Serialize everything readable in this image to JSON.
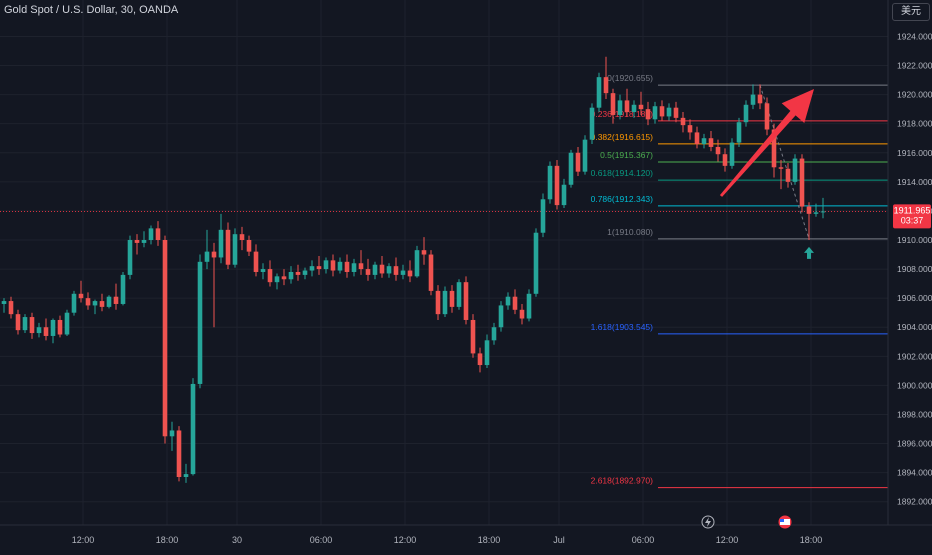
{
  "header": {
    "symbol_title": "Gold Spot / U.S. Dollar, 30, OANDA",
    "currency_button": "美元"
  },
  "colors": {
    "background": "#131722",
    "bull": "#26a69a",
    "bear": "#ef5350",
    "arrow": "#f23645"
  },
  "price_badge": {
    "price": "1911.965",
    "countdown": "03:37"
  },
  "chart_data": {
    "type": "candlestick",
    "title": "Gold Spot / U.S. Dollar, 30, OANDA",
    "x_tick_labels": [
      "12:00",
      "18:00",
      "30",
      "06:00",
      "12:00",
      "18:00",
      "Jul",
      "06:00",
      "12:00",
      "18:00"
    ],
    "y_tick_labels": [
      "1924.000",
      "1922.000",
      "1920.000",
      "1918.000",
      "1916.000",
      "1914.000",
      "1912.000",
      "1910.000",
      "1908.000",
      "1906.000",
      "1904.000",
      "1902.000",
      "1900.000",
      "1898.000",
      "1896.000",
      "1894.000",
      "1892.000"
    ],
    "ylim": [
      1891.0,
      1925.0
    ],
    "grid": true,
    "current_price": 1911.965,
    "candles": [
      {
        "o": 1905.6,
        "h": 1906.0,
        "c": 1905.8,
        "l": 1905.0
      },
      {
        "o": 1905.8,
        "h": 1906.1,
        "c": 1904.9,
        "l": 1904.6
      },
      {
        "o": 1904.9,
        "h": 1905.2,
        "c": 1903.8,
        "l": 1903.5
      },
      {
        "o": 1903.8,
        "h": 1904.9,
        "c": 1904.7,
        "l": 1903.6
      },
      {
        "o": 1904.7,
        "h": 1905.0,
        "c": 1903.6,
        "l": 1903.2
      },
      {
        "o": 1903.6,
        "h": 1904.3,
        "c": 1904.0,
        "l": 1903.3
      },
      {
        "o": 1904.0,
        "h": 1904.6,
        "c": 1903.4,
        "l": 1903.1
      },
      {
        "o": 1903.4,
        "h": 1904.6,
        "c": 1904.5,
        "l": 1902.9
      },
      {
        "o": 1904.5,
        "h": 1904.8,
        "c": 1903.5,
        "l": 1903.3
      },
      {
        "o": 1903.5,
        "h": 1905.2,
        "c": 1905.0,
        "l": 1903.4
      },
      {
        "o": 1905.0,
        "h": 1906.5,
        "c": 1906.3,
        "l": 1904.8
      },
      {
        "o": 1906.3,
        "h": 1907.2,
        "c": 1906.0,
        "l": 1905.7
      },
      {
        "o": 1906.0,
        "h": 1906.4,
        "c": 1905.5,
        "l": 1905.2
      },
      {
        "o": 1905.5,
        "h": 1905.9,
        "c": 1905.8,
        "l": 1904.9
      },
      {
        "o": 1905.8,
        "h": 1906.3,
        "c": 1905.4,
        "l": 1905.1
      },
      {
        "o": 1905.4,
        "h": 1906.2,
        "c": 1906.1,
        "l": 1905.3
      },
      {
        "o": 1906.1,
        "h": 1907.0,
        "c": 1905.6,
        "l": 1905.2
      },
      {
        "o": 1905.6,
        "h": 1907.8,
        "c": 1907.6,
        "l": 1905.5
      },
      {
        "o": 1907.6,
        "h": 1910.3,
        "c": 1910.0,
        "l": 1907.3
      },
      {
        "o": 1910.0,
        "h": 1910.4,
        "c": 1909.8,
        "l": 1909.0
      },
      {
        "o": 1909.8,
        "h": 1910.6,
        "c": 1910.0,
        "l": 1909.5
      },
      {
        "o": 1910.0,
        "h": 1911.0,
        "c": 1910.8,
        "l": 1909.7
      },
      {
        "o": 1910.8,
        "h": 1911.3,
        "c": 1910.0,
        "l": 1909.6
      },
      {
        "o": 1910.0,
        "h": 1910.3,
        "c": 1896.5,
        "l": 1896.0
      },
      {
        "o": 1896.5,
        "h": 1897.5,
        "c": 1896.9,
        "l": 1895.5
      },
      {
        "o": 1896.9,
        "h": 1897.2,
        "c": 1893.7,
        "l": 1893.4
      },
      {
        "o": 1893.7,
        "h": 1894.6,
        "c": 1893.9,
        "l": 1893.3
      },
      {
        "o": 1893.9,
        "h": 1900.5,
        "c": 1900.1,
        "l": 1893.8
      },
      {
        "o": 1900.1,
        "h": 1909.0,
        "c": 1908.5,
        "l": 1899.8
      },
      {
        "o": 1908.5,
        "h": 1910.7,
        "c": 1909.2,
        "l": 1908.0
      },
      {
        "o": 1909.2,
        "h": 1909.8,
        "c": 1908.8,
        "l": 1904.0
      },
      {
        "o": 1908.8,
        "h": 1911.8,
        "c": 1910.7,
        "l": 1908.4
      },
      {
        "o": 1910.7,
        "h": 1911.2,
        "c": 1908.3,
        "l": 1908.0
      },
      {
        "o": 1908.3,
        "h": 1910.8,
        "c": 1910.4,
        "l": 1908.1
      },
      {
        "o": 1910.4,
        "h": 1910.9,
        "c": 1910.0,
        "l": 1909.3
      },
      {
        "o": 1910.0,
        "h": 1910.3,
        "c": 1909.2,
        "l": 1908.9
      },
      {
        "o": 1909.2,
        "h": 1909.7,
        "c": 1907.8,
        "l": 1907.5
      },
      {
        "o": 1907.8,
        "h": 1908.4,
        "c": 1908.0,
        "l": 1907.3
      },
      {
        "o": 1908.0,
        "h": 1908.6,
        "c": 1907.1,
        "l": 1906.8
      },
      {
        "o": 1907.1,
        "h": 1907.7,
        "c": 1907.5,
        "l": 1906.6
      },
      {
        "o": 1907.5,
        "h": 1908.0,
        "c": 1907.3,
        "l": 1906.9
      },
      {
        "o": 1907.3,
        "h": 1908.2,
        "c": 1907.8,
        "l": 1907.0
      },
      {
        "o": 1907.8,
        "h": 1908.3,
        "c": 1907.6,
        "l": 1907.2
      },
      {
        "o": 1907.6,
        "h": 1908.1,
        "c": 1907.9,
        "l": 1907.3
      },
      {
        "o": 1907.9,
        "h": 1908.6,
        "c": 1908.2,
        "l": 1907.5
      },
      {
        "o": 1908.2,
        "h": 1908.9,
        "c": 1908.0,
        "l": 1907.6
      },
      {
        "o": 1908.0,
        "h": 1908.8,
        "c": 1908.6,
        "l": 1907.7
      },
      {
        "o": 1908.6,
        "h": 1909.0,
        "c": 1907.9,
        "l": 1907.5
      },
      {
        "o": 1907.9,
        "h": 1908.8,
        "c": 1908.5,
        "l": 1907.7
      },
      {
        "o": 1908.5,
        "h": 1909.0,
        "c": 1907.8,
        "l": 1907.4
      },
      {
        "o": 1907.8,
        "h": 1908.7,
        "c": 1908.4,
        "l": 1907.5
      },
      {
        "o": 1908.4,
        "h": 1909.3,
        "c": 1908.0,
        "l": 1907.6
      },
      {
        "o": 1908.0,
        "h": 1908.7,
        "c": 1907.6,
        "l": 1907.2
      },
      {
        "o": 1907.6,
        "h": 1908.5,
        "c": 1908.3,
        "l": 1907.3
      },
      {
        "o": 1908.3,
        "h": 1908.9,
        "c": 1907.7,
        "l": 1907.4
      },
      {
        "o": 1907.7,
        "h": 1908.4,
        "c": 1908.2,
        "l": 1907.4
      },
      {
        "o": 1908.2,
        "h": 1908.8,
        "c": 1907.6,
        "l": 1907.2
      },
      {
        "o": 1907.6,
        "h": 1908.3,
        "c": 1907.9,
        "l": 1907.3
      },
      {
        "o": 1907.9,
        "h": 1908.6,
        "c": 1907.5,
        "l": 1907.1
      },
      {
        "o": 1907.5,
        "h": 1909.6,
        "c": 1909.3,
        "l": 1907.4
      },
      {
        "o": 1909.3,
        "h": 1910.2,
        "c": 1909.0,
        "l": 1908.3
      },
      {
        "o": 1909.0,
        "h": 1909.3,
        "c": 1906.5,
        "l": 1906.2
      },
      {
        "o": 1906.5,
        "h": 1906.9,
        "c": 1904.9,
        "l": 1904.5
      },
      {
        "o": 1904.9,
        "h": 1906.8,
        "c": 1906.5,
        "l": 1904.7
      },
      {
        "o": 1906.5,
        "h": 1906.9,
        "c": 1905.4,
        "l": 1905.0
      },
      {
        "o": 1905.4,
        "h": 1907.3,
        "c": 1907.1,
        "l": 1905.2
      },
      {
        "o": 1907.1,
        "h": 1907.5,
        "c": 1904.5,
        "l": 1904.2
      },
      {
        "o": 1904.5,
        "h": 1904.9,
        "c": 1902.2,
        "l": 1901.9
      },
      {
        "o": 1902.2,
        "h": 1902.6,
        "c": 1901.4,
        "l": 1900.9
      },
      {
        "o": 1901.4,
        "h": 1903.5,
        "c": 1903.1,
        "l": 1901.2
      },
      {
        "o": 1903.1,
        "h": 1904.3,
        "c": 1904.0,
        "l": 1902.8
      },
      {
        "o": 1904.0,
        "h": 1905.8,
        "c": 1905.5,
        "l": 1903.7
      },
      {
        "o": 1905.5,
        "h": 1906.4,
        "c": 1906.1,
        "l": 1905.2
      },
      {
        "o": 1906.1,
        "h": 1906.6,
        "c": 1905.2,
        "l": 1904.9
      },
      {
        "o": 1905.2,
        "h": 1905.6,
        "c": 1904.6,
        "l": 1904.2
      },
      {
        "o": 1904.6,
        "h": 1906.6,
        "c": 1906.3,
        "l": 1904.4
      },
      {
        "o": 1906.3,
        "h": 1910.8,
        "c": 1910.5,
        "l": 1906.1
      },
      {
        "o": 1910.5,
        "h": 1913.2,
        "c": 1912.8,
        "l": 1910.2
      },
      {
        "o": 1912.8,
        "h": 1915.4,
        "c": 1915.1,
        "l": 1912.5
      },
      {
        "o": 1915.1,
        "h": 1915.5,
        "c": 1912.4,
        "l": 1912.1
      },
      {
        "o": 1912.4,
        "h": 1914.2,
        "c": 1913.8,
        "l": 1912.2
      },
      {
        "o": 1913.8,
        "h": 1916.2,
        "c": 1916.0,
        "l": 1913.6
      },
      {
        "o": 1916.0,
        "h": 1916.4,
        "c": 1914.7,
        "l": 1914.4
      },
      {
        "o": 1914.7,
        "h": 1917.2,
        "c": 1916.9,
        "l": 1914.5
      },
      {
        "o": 1916.9,
        "h": 1919.4,
        "c": 1919.1,
        "l": 1916.6
      },
      {
        "o": 1919.1,
        "h": 1921.5,
        "c": 1921.2,
        "l": 1918.8
      },
      {
        "o": 1921.2,
        "h": 1922.6,
        "c": 1920.1,
        "l": 1919.7
      },
      {
        "o": 1920.1,
        "h": 1920.4,
        "c": 1918.6,
        "l": 1918.0
      },
      {
        "o": 1918.6,
        "h": 1920.0,
        "c": 1919.6,
        "l": 1918.3
      },
      {
        "o": 1919.6,
        "h": 1920.4,
        "c": 1918.8,
        "l": 1918.5
      },
      {
        "o": 1918.8,
        "h": 1919.6,
        "c": 1919.3,
        "l": 1918.4
      },
      {
        "o": 1919.3,
        "h": 1920.2,
        "c": 1919.0,
        "l": 1918.6
      },
      {
        "o": 1919.0,
        "h": 1919.5,
        "c": 1918.3,
        "l": 1917.9
      },
      {
        "o": 1918.3,
        "h": 1919.5,
        "c": 1919.2,
        "l": 1918.0
      },
      {
        "o": 1919.2,
        "h": 1919.6,
        "c": 1918.5,
        "l": 1918.2
      },
      {
        "o": 1918.5,
        "h": 1919.4,
        "c": 1919.1,
        "l": 1918.2
      },
      {
        "o": 1919.1,
        "h": 1919.5,
        "c": 1918.4,
        "l": 1918.1
      },
      {
        "o": 1918.4,
        "h": 1918.8,
        "c": 1917.9,
        "l": 1917.4
      },
      {
        "o": 1917.9,
        "h": 1918.3,
        "c": 1917.4,
        "l": 1916.9
      },
      {
        "o": 1917.4,
        "h": 1917.8,
        "c": 1916.6,
        "l": 1916.3
      },
      {
        "o": 1916.6,
        "h": 1917.3,
        "c": 1917.0,
        "l": 1916.3
      },
      {
        "o": 1917.0,
        "h": 1917.5,
        "c": 1916.4,
        "l": 1916.1
      },
      {
        "o": 1916.4,
        "h": 1916.9,
        "c": 1915.9,
        "l": 1915.4
      },
      {
        "o": 1915.9,
        "h": 1916.3,
        "c": 1915.1,
        "l": 1914.7
      },
      {
        "o": 1915.1,
        "h": 1917.0,
        "c": 1916.7,
        "l": 1914.9
      },
      {
        "o": 1916.7,
        "h": 1918.4,
        "c": 1918.1,
        "l": 1916.4
      },
      {
        "o": 1918.1,
        "h": 1919.6,
        "c": 1919.3,
        "l": 1917.8
      },
      {
        "o": 1919.3,
        "h": 1920.7,
        "c": 1920.0,
        "l": 1919.0
      },
      {
        "o": 1920.0,
        "h": 1920.7,
        "c": 1919.4,
        "l": 1919.0
      },
      {
        "o": 1919.4,
        "h": 1919.8,
        "c": 1917.6,
        "l": 1917.2
      },
      {
        "o": 1917.6,
        "h": 1918.0,
        "c": 1915.0,
        "l": 1914.3
      },
      {
        "o": 1915.0,
        "h": 1915.5,
        "c": 1914.9,
        "l": 1913.5
      },
      {
        "o": 1914.9,
        "h": 1915.3,
        "c": 1914.0,
        "l": 1913.6
      },
      {
        "o": 1914.0,
        "h": 1915.9,
        "c": 1915.6,
        "l": 1913.8
      },
      {
        "o": 1915.6,
        "h": 1915.9,
        "c": 1912.3,
        "l": 1911.9
      },
      {
        "o": 1912.3,
        "h": 1912.6,
        "c": 1911.8,
        "l": 1910.0
      },
      {
        "o": 1911.8,
        "h": 1912.5,
        "c": 1911.9,
        "l": 1911.6
      },
      {
        "o": 1911.9,
        "h": 1912.9,
        "c": 1911.965,
        "l": 1911.5
      }
    ],
    "fibonacci": [
      {
        "label": "0(1920.655)",
        "price": 1920.655,
        "color": "#787b86"
      },
      {
        "label": "0.236(1918.189)",
        "price": 1918.189,
        "color": "#f23645"
      },
      {
        "label": "0.382(1916.615)",
        "price": 1916.615,
        "color": "#ff9800"
      },
      {
        "label": "0.5(1915.367)",
        "price": 1915.367,
        "color": "#4caf50"
      },
      {
        "label": "0.618(1914.120)",
        "price": 1914.12,
        "color": "#089981"
      },
      {
        "label": "0.786(1912.343)",
        "price": 1912.343,
        "color": "#00bcd4"
      },
      {
        "label": "1(1910.080)",
        "price": 1910.08,
        "color": "#787b86"
      },
      {
        "label": "1.618(1903.545)",
        "price": 1903.545,
        "color": "#2962ff"
      },
      {
        "label": "2.618(1892.970)",
        "price": 1892.97,
        "color": "#f23645"
      }
    ],
    "annotations": [
      "buy arrow below candle",
      "large red arrow pointing up-right"
    ]
  }
}
